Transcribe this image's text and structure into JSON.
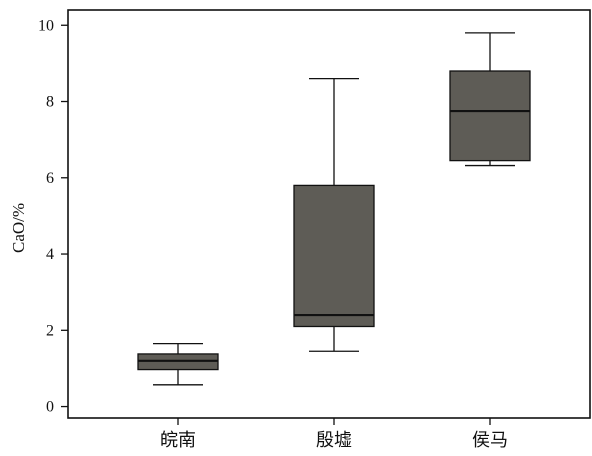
{
  "chart_data": {
    "type": "box",
    "title": "",
    "xlabel": "",
    "ylabel": "CaO/%",
    "ylim": [
      -0.3,
      10.4
    ],
    "yticks": [
      0,
      2,
      4,
      6,
      8,
      10
    ],
    "grid": false,
    "legend": "none",
    "colors": {
      "box_fill": "#5e5c56",
      "line": "#111111"
    },
    "categories": [
      "皖南",
      "殷墟",
      "侯马"
    ],
    "boxes": [
      {
        "category": "皖南",
        "min": 0.57,
        "q1": 0.97,
        "median": 1.2,
        "q3": 1.38,
        "max": 1.65
      },
      {
        "category": "殷墟",
        "min": 1.45,
        "q1": 2.1,
        "median": 2.4,
        "q3": 5.8,
        "max": 8.6
      },
      {
        "category": "侯马",
        "min": 6.32,
        "q1": 6.45,
        "median": 7.75,
        "q3": 8.8,
        "max": 9.8
      }
    ]
  }
}
